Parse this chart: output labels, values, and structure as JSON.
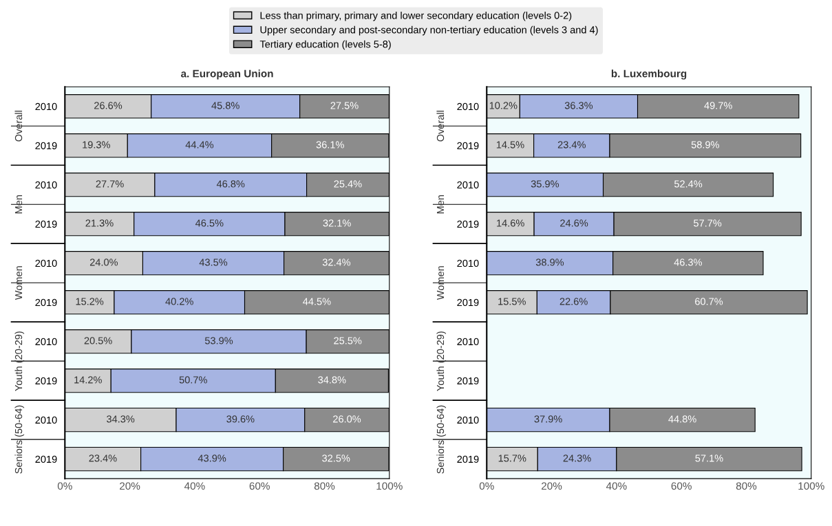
{
  "chart_data": [
    {
      "type": "bar",
      "title": "a. European Union",
      "orientation": "horizontal",
      "stacked": true,
      "categories": [
        "2010",
        "2019",
        "2010",
        "2019",
        "2010",
        "2019",
        "2010",
        "2019",
        "2010",
        "2019"
      ],
      "annotations": [
        "Overall",
        "Men",
        "Women",
        "Youth (20-29)",
        "Seniors (50-64)"
      ],
      "series": [
        {
          "name": "Less than primary, primary and lower secondary education (levels 0-2)",
          "color": "#d0d0d0",
          "values": [
            26.6,
            19.3,
            27.7,
            21.3,
            24.0,
            15.2,
            20.5,
            14.2,
            34.3,
            23.4
          ],
          "value_labels": [
            "26.6%",
            "19.3%",
            "27.7%",
            "21.3%",
            "24.0%",
            "15.2%",
            "20.5%",
            "14.2%",
            "34.3%",
            "23.4%"
          ]
        },
        {
          "name": "Upper secondary and post-secondary non-tertiary education (levels 3 and 4)",
          "color": "#a6b4e2",
          "values": [
            45.8,
            44.4,
            46.8,
            46.5,
            43.5,
            40.2,
            53.9,
            50.7,
            39.6,
            43.9
          ],
          "value_labels": [
            "45.8%",
            "44.4%",
            "46.8%",
            "46.5%",
            "43.5%",
            "40.2%",
            "53.9%",
            "50.7%",
            "39.6%",
            "43.9%"
          ]
        },
        {
          "name": "Tertiary education (levels 5-8)",
          "color": "#8c8c8c",
          "values": [
            27.5,
            36.1,
            25.4,
            32.1,
            32.4,
            44.5,
            25.5,
            34.8,
            26.0,
            32.5
          ],
          "value_labels": [
            "27.5%",
            "36.1%",
            "25.4%",
            "32.1%",
            "32.4%",
            "44.5%",
            "25.5%",
            "34.8%",
            "26.0%",
            "32.5%"
          ]
        }
      ],
      "xlim": [
        0,
        100
      ],
      "xticks": [
        {
          "value": 0,
          "label": "0%"
        },
        {
          "value": 20,
          "label": "20%"
        },
        {
          "value": 40,
          "label": "40%"
        },
        {
          "value": 60,
          "label": "60%"
        },
        {
          "value": 80,
          "label": "80%"
        },
        {
          "value": 100,
          "label": "100%"
        }
      ],
      "grid": false,
      "legend": "top"
    },
    {
      "type": "bar",
      "title": "b. Luxembourg",
      "orientation": "horizontal",
      "stacked": true,
      "categories": [
        "2010",
        "2019",
        "2010",
        "2019",
        "2010",
        "2019",
        "2010",
        "2019",
        "2010",
        "2019"
      ],
      "annotations": [
        "Overall",
        "Men",
        "Women",
        "Youth (20-29)",
        "Seniors (50-64)"
      ],
      "series": [
        {
          "color": "#d0d0d0",
          "values": [
            10.2,
            14.5,
            null,
            14.6,
            null,
            15.5,
            null,
            null,
            null,
            15.7
          ],
          "value_labels": [
            "10.2%",
            "14.5%",
            null,
            "14.6%",
            null,
            "15.5%",
            null,
            null,
            null,
            "15.7%"
          ]
        },
        {
          "color": "#a6b4e2",
          "values": [
            36.3,
            23.4,
            35.9,
            24.6,
            38.9,
            22.6,
            null,
            null,
            37.9,
            24.3
          ],
          "value_labels": [
            "36.3%",
            "23.4%",
            "35.9%",
            "24.6%",
            "38.9%",
            "22.6%",
            null,
            null,
            "37.9%",
            "24.3%"
          ]
        },
        {
          "color": "#8c8c8c",
          "values": [
            49.7,
            58.9,
            52.4,
            57.7,
            46.3,
            60.7,
            null,
            null,
            44.8,
            57.1
          ],
          "value_labels": [
            "49.7%",
            "58.9%",
            "52.4%",
            "57.7%",
            "46.3%",
            "60.7%",
            null,
            null,
            "44.8%",
            "57.1%"
          ]
        }
      ],
      "xlim": [
        0,
        100
      ],
      "xticks": [
        {
          "value": 0,
          "label": "0%"
        },
        {
          "value": 20,
          "label": "20%"
        },
        {
          "value": 40,
          "label": "40%"
        },
        {
          "value": 60,
          "label": "60%"
        },
        {
          "value": 80,
          "label": "80%"
        },
        {
          "value": 100,
          "label": "100%"
        }
      ],
      "grid": false
    }
  ]
}
